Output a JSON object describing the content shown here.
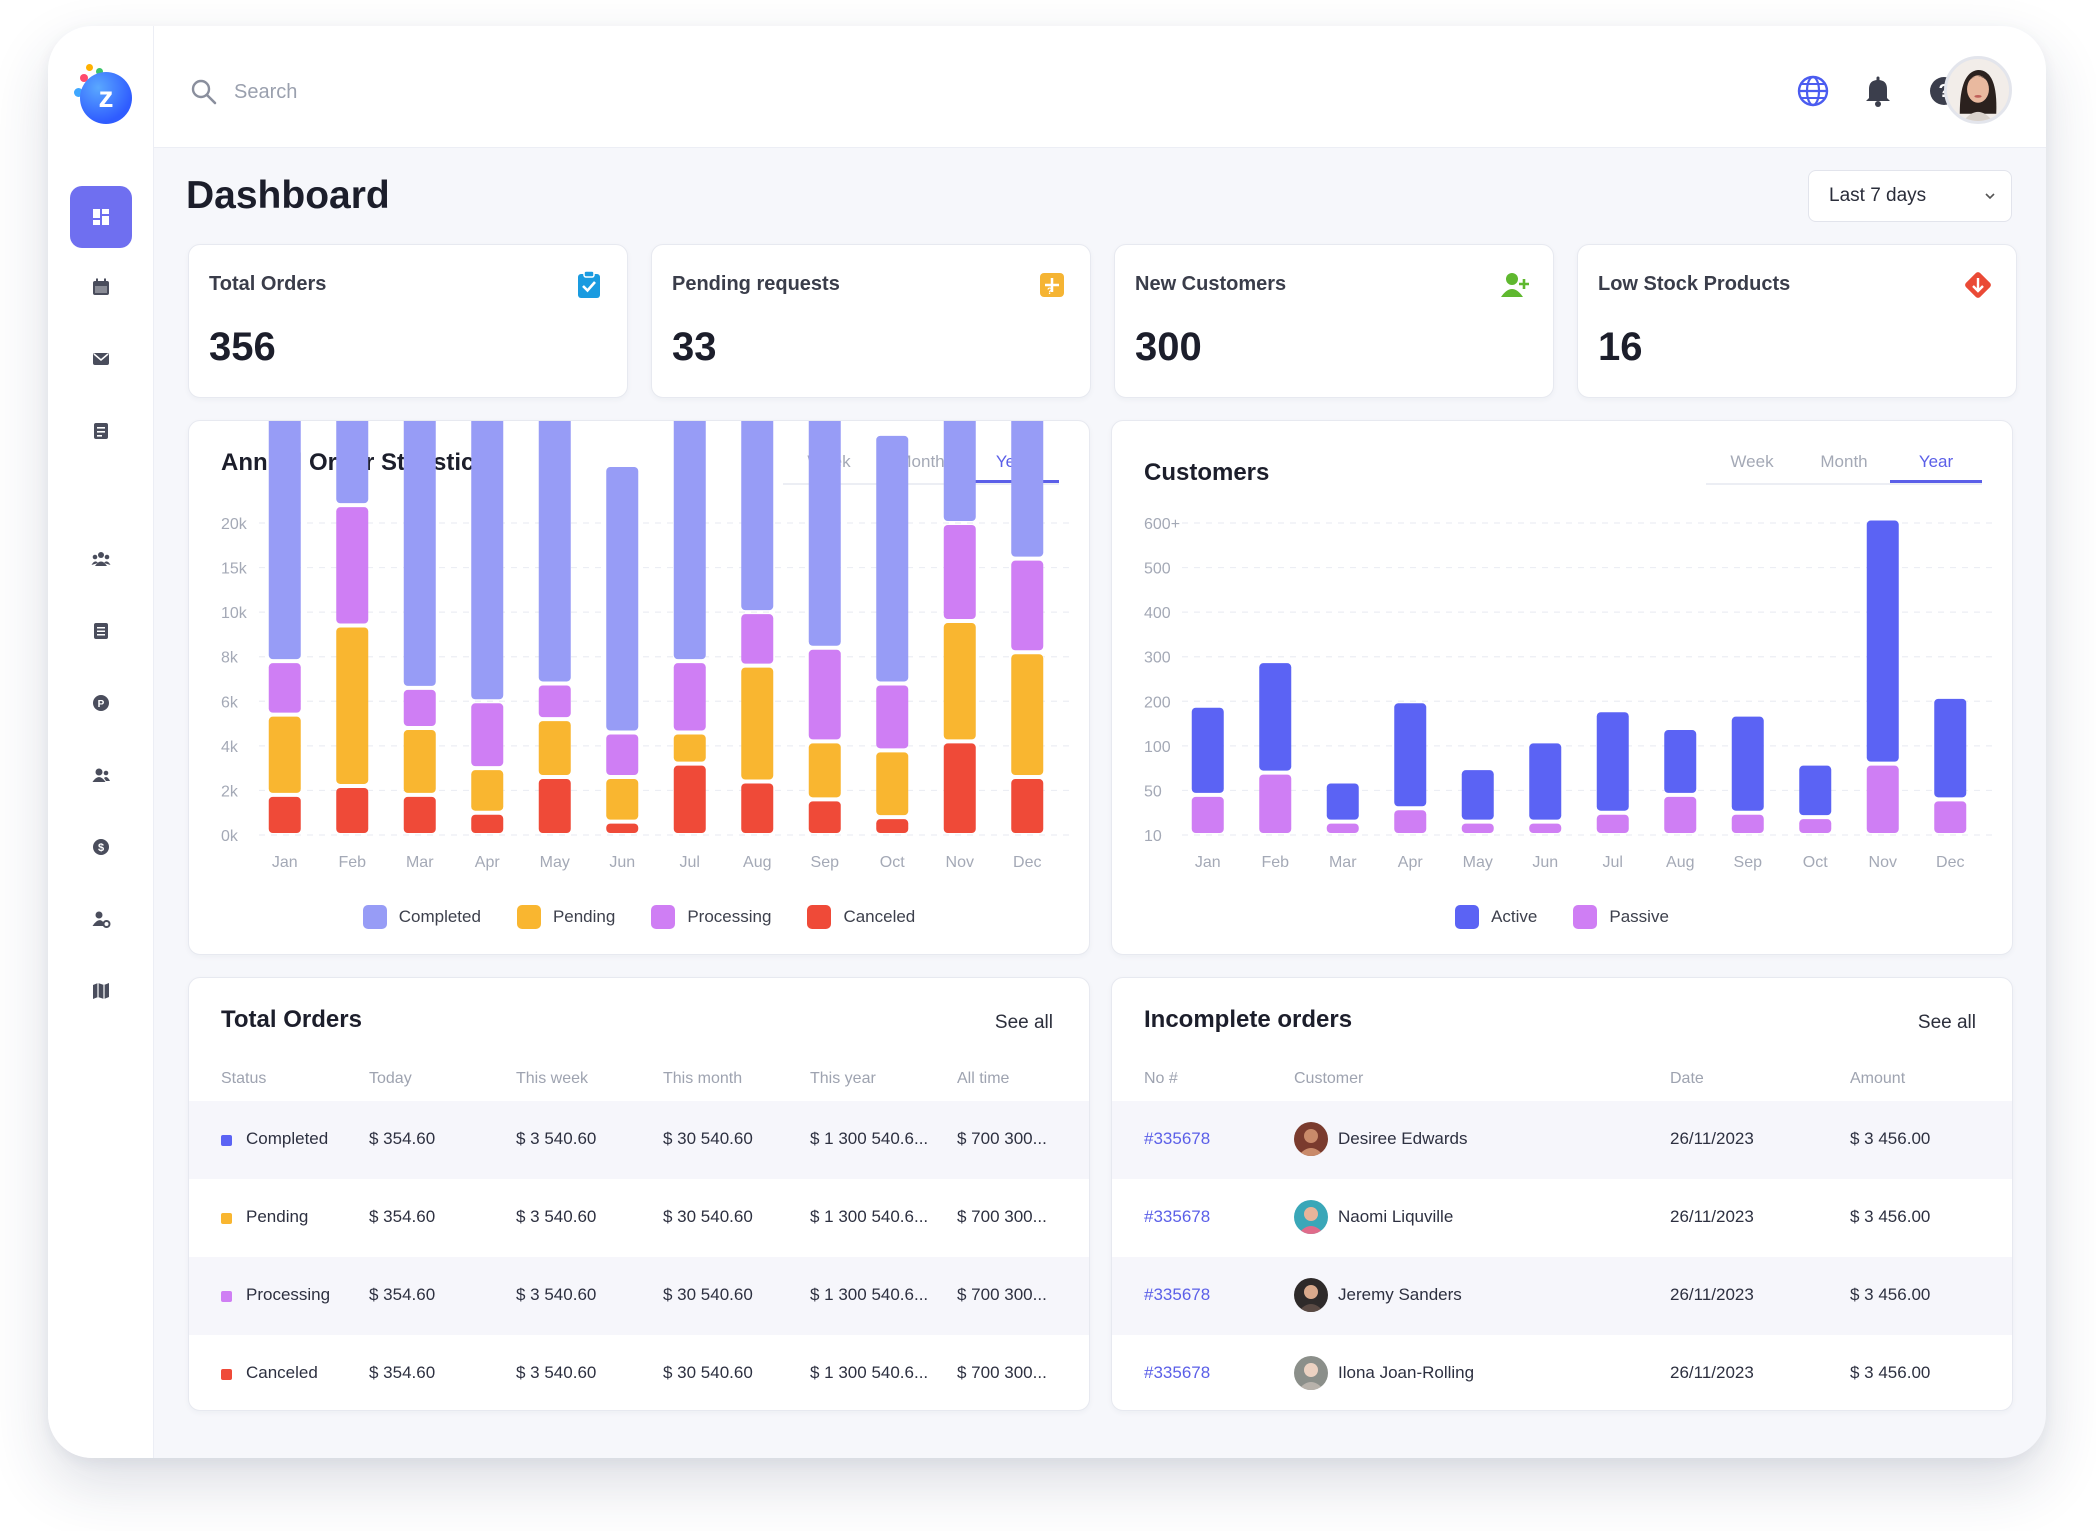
{
  "topbar": {
    "search_placeholder": "Search",
    "icons": [
      "globe-icon",
      "bell-icon",
      "help-icon"
    ]
  },
  "sidebar": {
    "items": [
      {
        "name": "dashboard-icon",
        "active": true
      },
      {
        "name": "calendar-icon",
        "active": false
      },
      {
        "name": "mail-icon",
        "active": false
      },
      {
        "name": "invoice-icon",
        "active": false
      },
      {
        "name": "users-group-icon",
        "active": false
      },
      {
        "name": "document-icon",
        "active": false
      },
      {
        "name": "parking-icon",
        "active": false
      },
      {
        "name": "contacts-icon",
        "active": false
      },
      {
        "name": "dollar-icon",
        "active": false
      },
      {
        "name": "user-settings-icon",
        "active": false
      },
      {
        "name": "map-icon",
        "active": false
      }
    ]
  },
  "page": {
    "title": "Dashboard",
    "range": "Last 7 days"
  },
  "stats": [
    {
      "label": "Total Orders",
      "value": "356",
      "icon": "clipboard-check-icon",
      "color": "#1a9be0"
    },
    {
      "label": "Pending requests",
      "value": "33",
      "icon": "pending-icon",
      "color": "#f5b433"
    },
    {
      "label": "New Customers",
      "value": "300",
      "icon": "user-add-icon",
      "color": "#5fb82f"
    },
    {
      "label": "Low Stock Products",
      "value": "16",
      "icon": "stock-down-icon",
      "color": "#ea4a36"
    }
  ],
  "annual": {
    "title": "Annual Order Statistics",
    "tabs": [
      "Week",
      "Month",
      "Year"
    ],
    "active_tab": "Year"
  },
  "customers": {
    "title": "Customers",
    "tabs": [
      "Week",
      "Month",
      "Year"
    ],
    "active_tab": "Year"
  },
  "chart_data": [
    {
      "type": "bar",
      "stacked": true,
      "title": "Annual Order Statistics",
      "categories": [
        "Jan",
        "Feb",
        "Mar",
        "Apr",
        "May",
        "Jun",
        "Jul",
        "Aug",
        "Sep",
        "Oct",
        "Nov",
        "Dec"
      ],
      "y_ticks": [
        "0k",
        "2k",
        "4k",
        "6k",
        "8k",
        "10k",
        "15k",
        "20k"
      ],
      "series": [
        {
          "name": "Canceled",
          "color": "#ef4a38",
          "values": [
            0.9,
            1.1,
            0.9,
            0.5,
            1.3,
            0.3,
            1.6,
            1.2,
            0.8,
            0.4,
            2.1,
            1.3
          ]
        },
        {
          "name": "Pending",
          "color": "#f9b630",
          "values": [
            1.8,
            3.6,
            1.5,
            1.0,
            1.3,
            1.0,
            0.7,
            2.6,
            1.3,
            1.5,
            2.7,
            2.8
          ]
        },
        {
          "name": "Processing",
          "color": "#cf7ef4",
          "values": [
            1.2,
            2.7,
            0.9,
            1.5,
            0.8,
            1.0,
            1.6,
            1.2,
            2.1,
            1.5,
            2.2,
            2.1
          ]
        },
        {
          "name": "Completed",
          "color": "#979cf6",
          "values": [
            8.2,
            6.0,
            8.4,
            6.6,
            7.1,
            6.0,
            8.3,
            7.0,
            8.8,
            5.6,
            7.6,
            6.8
          ]
        }
      ],
      "legend": [
        "Completed",
        "Pending",
        "Processing",
        "Canceled"
      ],
      "legend_colors": [
        "#979cf6",
        "#f9b630",
        "#cf7ef4",
        "#ef4a38"
      ],
      "grid": true,
      "legend_position": "bottom"
    },
    {
      "type": "bar",
      "stacked": true,
      "title": "Customers",
      "categories": [
        "Jan",
        "Feb",
        "Mar",
        "Apr",
        "May",
        "Jun",
        "Jul",
        "Aug",
        "Sep",
        "Oct",
        "Nov",
        "Dec"
      ],
      "y_ticks": [
        "10",
        "50",
        "100",
        "200",
        "300",
        "400",
        "500",
        "600+"
      ],
      "series": [
        {
          "name": "Passive",
          "color": "#cf7ef4",
          "values": [
            0.9,
            1.4,
            0.3,
            0.6,
            0.3,
            0.3,
            0.5,
            0.9,
            0.5,
            0.4,
            1.6,
            0.8
          ]
        },
        {
          "name": "Active",
          "color": "#5b63f4",
          "values": [
            2.0,
            2.5,
            0.9,
            2.4,
            1.2,
            1.8,
            2.3,
            1.5,
            2.2,
            1.2,
            5.5,
            2.3
          ]
        }
      ],
      "legend": [
        "Active",
        "Passive"
      ],
      "legend_colors": [
        "#5b63f4",
        "#cf7ef4"
      ],
      "grid": true,
      "legend_position": "bottom"
    }
  ],
  "orders_table": {
    "title": "Total Orders",
    "see_all": "See all",
    "headers": [
      "Status",
      "Today",
      "This week",
      "This month",
      "This year",
      "All time"
    ],
    "rows": [
      {
        "status": "Completed",
        "color": "#5b63f4",
        "today": "$ 354.60",
        "week": "$ 3 540.60",
        "month": "$ 30 540.60",
        "year": "$ 1 300 540.6...",
        "all": "$ 700 300..."
      },
      {
        "status": "Pending",
        "color": "#f9b630",
        "today": "$ 354.60",
        "week": "$ 3 540.60",
        "month": "$ 30 540.60",
        "year": "$ 1 300 540.6...",
        "all": "$ 700 300..."
      },
      {
        "status": "Processing",
        "color": "#cf7ef4",
        "today": "$ 354.60",
        "week": "$ 3 540.60",
        "month": "$ 30 540.60",
        "year": "$ 1 300 540.6...",
        "all": "$ 700 300..."
      },
      {
        "status": "Canceled",
        "color": "#ef4a38",
        "today": "$ 354.60",
        "week": "$ 3 540.60",
        "month": "$ 30 540.60",
        "year": "$ 1 300 540.6...",
        "all": "$ 700 300..."
      }
    ]
  },
  "incomplete": {
    "title": "Incomplete orders",
    "see_all": "See all",
    "headers": [
      "No #",
      "Customer",
      "Date",
      "Amount"
    ],
    "rows": [
      {
        "no": "#335678",
        "customer": "Desiree Edwards",
        "date": "26/11/2023",
        "amount": "$ 3 456.00",
        "avatar_color": "#7a3b2e"
      },
      {
        "no": "#335678",
        "customer": "Naomi Liquville",
        "date": "26/11/2023",
        "amount": "$ 3 456.00",
        "avatar_color": "#3aa7b8"
      },
      {
        "no": "#335678",
        "customer": "Jeremy Sanders",
        "date": "26/11/2023",
        "amount": "$ 3 456.00",
        "avatar_color": "#2e2a2a"
      },
      {
        "no": "#335678",
        "customer": "Ilona Joan-Rolling",
        "date": "26/11/2023",
        "amount": "$ 3 456.00",
        "avatar_color": "#8b8f8a"
      }
    ]
  }
}
